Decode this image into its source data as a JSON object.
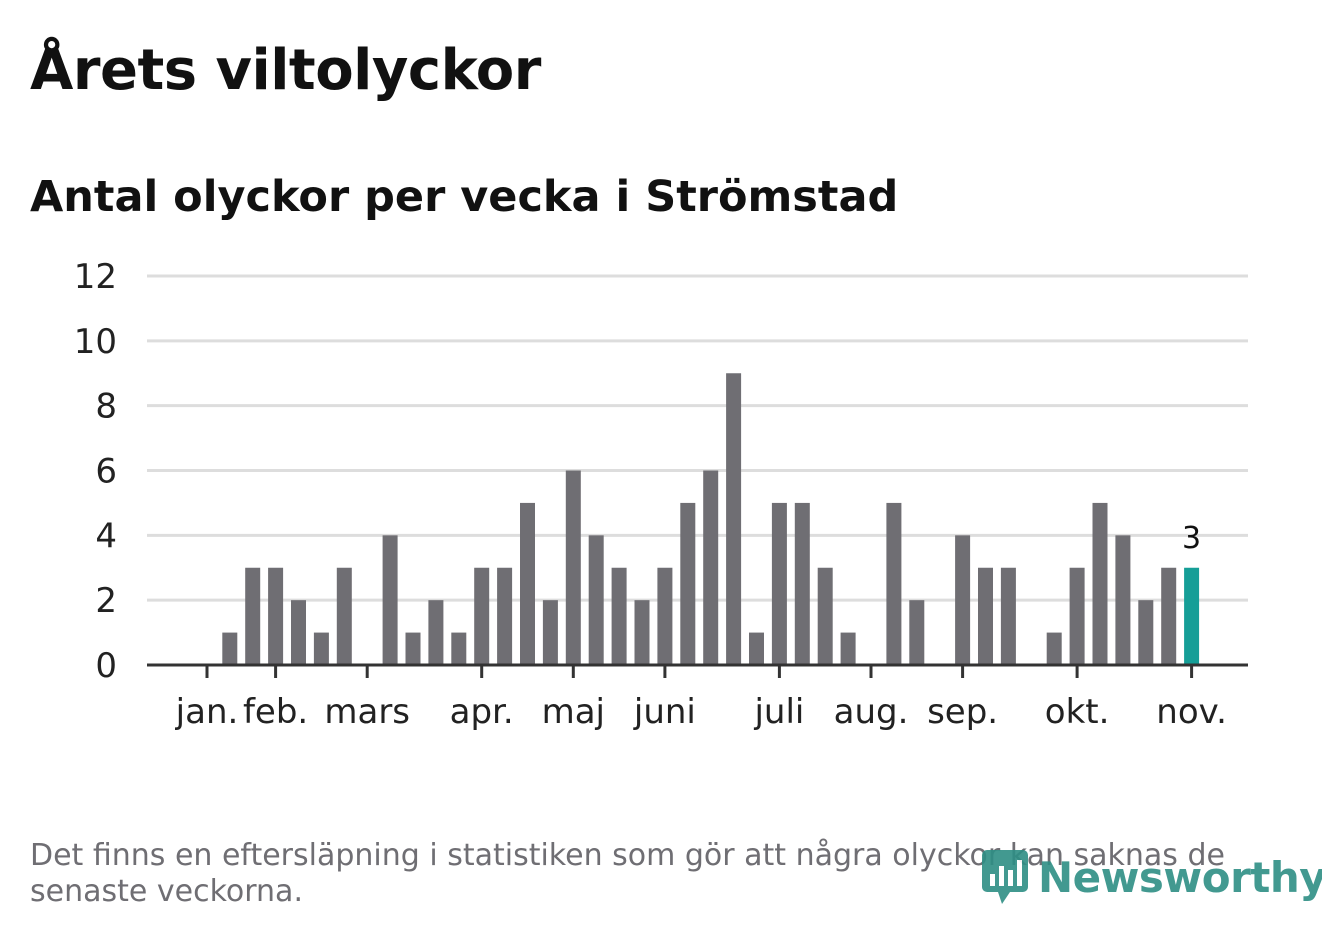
{
  "header": {
    "title": "Årets viltolyckor",
    "subtitle": "Antal olyckor per vecka i Strömstad"
  },
  "footer": {
    "note": "Det finns en eftersläpning i statistiken som gör att några olyckor kan saknas de senaste veckorna.",
    "brand": "Newsworthy"
  },
  "colors": {
    "bar": "#6f6e73",
    "highlight": "#159e97",
    "grid": "#dddddd",
    "axis": "#333333",
    "brand": "#2e8f85"
  },
  "chart_data": {
    "type": "bar",
    "title": "Antal olyckor per vecka i Strömstad",
    "xlabel": "",
    "ylabel": "",
    "ylim": [
      0,
      12
    ],
    "yticks": [
      0,
      2,
      4,
      6,
      8,
      10,
      12
    ],
    "grid": true,
    "values": [
      0,
      0,
      1,
      3,
      3,
      2,
      1,
      3,
      0,
      4,
      1,
      2,
      1,
      3,
      3,
      5,
      2,
      6,
      4,
      3,
      2,
      3,
      5,
      6,
      9,
      1,
      5,
      5,
      3,
      1,
      0,
      5,
      2,
      0,
      4,
      3,
      3,
      0,
      1,
      3,
      5,
      4,
      2,
      3,
      3
    ],
    "highlight_index": 44,
    "highlight_label": "3",
    "month_ticks": [
      {
        "label": "jan.",
        "week_index": 0
      },
      {
        "label": "feb.",
        "week_index": 4
      },
      {
        "label": "mars",
        "week_index": 8
      },
      {
        "label": "apr.",
        "week_index": 13
      },
      {
        "label": "maj",
        "week_index": 17
      },
      {
        "label": "juni",
        "week_index": 21
      },
      {
        "label": "juli",
        "week_index": 26
      },
      {
        "label": "aug.",
        "week_index": 30
      },
      {
        "label": "sep.",
        "week_index": 34
      },
      {
        "label": "okt.",
        "week_index": 39
      },
      {
        "label": "nov.",
        "week_index": 44
      }
    ]
  }
}
